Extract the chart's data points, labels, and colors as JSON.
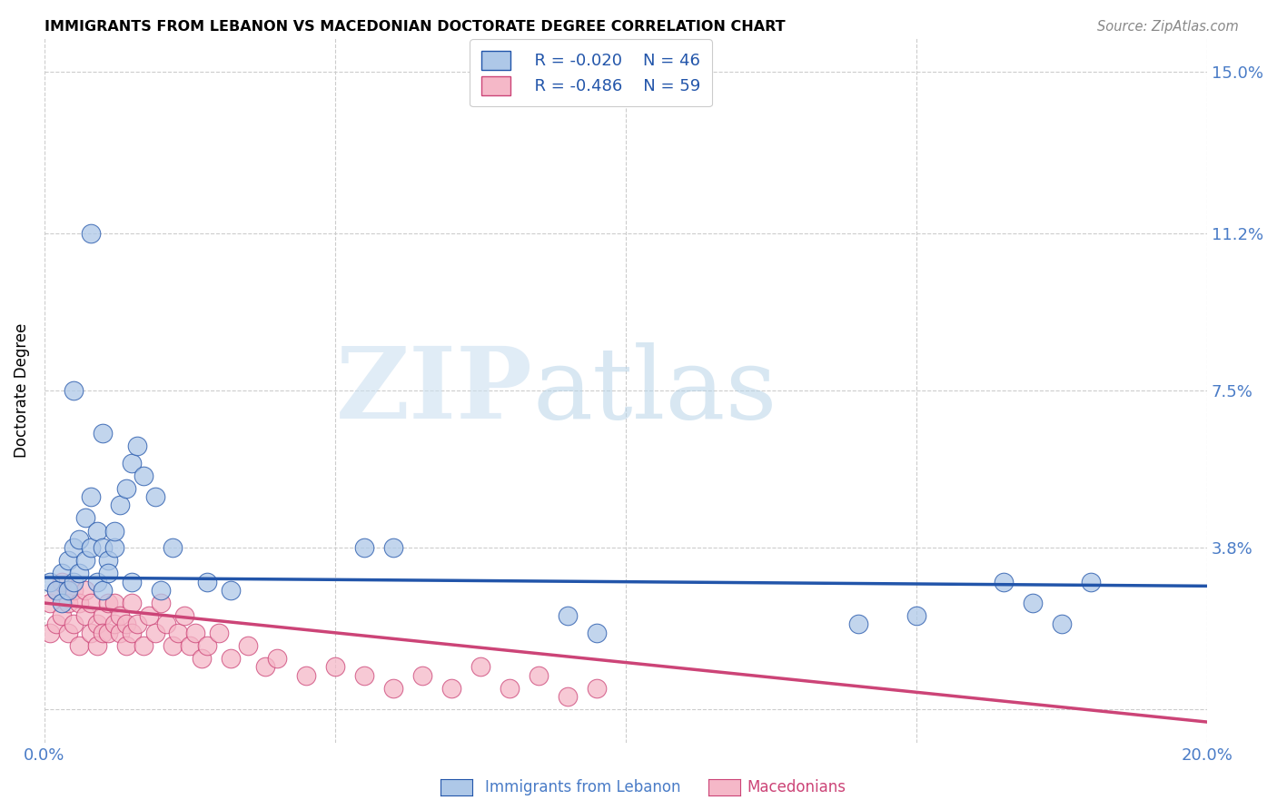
{
  "title": "IMMIGRANTS FROM LEBANON VS MACEDONIAN DOCTORATE DEGREE CORRELATION CHART",
  "source": "Source: ZipAtlas.com",
  "ylabel": "Doctorate Degree",
  "xlim": [
    0.0,
    0.2
  ],
  "ylim": [
    -0.008,
    0.158
  ],
  "yticks": [
    0.0,
    0.038,
    0.075,
    0.112,
    0.15
  ],
  "ytick_labels": [
    "",
    "3.8%",
    "7.5%",
    "11.2%",
    "15.0%"
  ],
  "xticks": [
    0.0,
    0.05,
    0.1,
    0.15,
    0.2
  ],
  "xtick_labels": [
    "0.0%",
    "",
    "",
    "",
    "20.0%"
  ],
  "legend_r1": "R = -0.020",
  "legend_n1": "N = 46",
  "legend_r2": "R = -0.486",
  "legend_n2": "N = 59",
  "blue_color": "#aec8e8",
  "pink_color": "#f5b8c8",
  "line_blue": "#2255aa",
  "line_pink": "#cc4477",
  "blue_line_start_y": 0.031,
  "blue_line_end_y": 0.029,
  "pink_line_start_y": 0.025,
  "pink_line_end_y": -0.003,
  "blue_points_x": [
    0.001,
    0.002,
    0.003,
    0.003,
    0.004,
    0.004,
    0.005,
    0.005,
    0.006,
    0.006,
    0.007,
    0.007,
    0.008,
    0.008,
    0.009,
    0.009,
    0.01,
    0.01,
    0.011,
    0.011,
    0.012,
    0.012,
    0.013,
    0.014,
    0.015,
    0.016,
    0.017,
    0.019,
    0.022,
    0.028,
    0.055,
    0.06,
    0.09,
    0.095,
    0.14,
    0.15,
    0.165,
    0.17,
    0.175,
    0.18,
    0.032,
    0.005,
    0.008,
    0.01,
    0.015,
    0.02
  ],
  "blue_points_y": [
    0.03,
    0.028,
    0.032,
    0.025,
    0.035,
    0.028,
    0.038,
    0.03,
    0.04,
    0.032,
    0.045,
    0.035,
    0.05,
    0.038,
    0.042,
    0.03,
    0.038,
    0.028,
    0.035,
    0.032,
    0.038,
    0.042,
    0.048,
    0.052,
    0.058,
    0.062,
    0.055,
    0.05,
    0.038,
    0.03,
    0.038,
    0.038,
    0.022,
    0.018,
    0.02,
    0.022,
    0.03,
    0.025,
    0.02,
    0.03,
    0.028,
    0.075,
    0.112,
    0.065,
    0.03,
    0.028
  ],
  "pink_points_x": [
    0.001,
    0.001,
    0.002,
    0.002,
    0.003,
    0.003,
    0.004,
    0.004,
    0.005,
    0.005,
    0.006,
    0.006,
    0.007,
    0.007,
    0.008,
    0.008,
    0.009,
    0.009,
    0.01,
    0.01,
    0.011,
    0.011,
    0.012,
    0.012,
    0.013,
    0.013,
    0.014,
    0.014,
    0.015,
    0.015,
    0.016,
    0.017,
    0.018,
    0.019,
    0.02,
    0.021,
    0.022,
    0.023,
    0.024,
    0.025,
    0.026,
    0.027,
    0.028,
    0.03,
    0.032,
    0.035,
    0.038,
    0.04,
    0.045,
    0.05,
    0.055,
    0.06,
    0.065,
    0.07,
    0.075,
    0.08,
    0.085,
    0.09,
    0.095
  ],
  "pink_points_y": [
    0.025,
    0.018,
    0.028,
    0.02,
    0.03,
    0.022,
    0.025,
    0.018,
    0.028,
    0.02,
    0.025,
    0.015,
    0.022,
    0.028,
    0.018,
    0.025,
    0.02,
    0.015,
    0.022,
    0.018,
    0.025,
    0.018,
    0.02,
    0.025,
    0.018,
    0.022,
    0.015,
    0.02,
    0.025,
    0.018,
    0.02,
    0.015,
    0.022,
    0.018,
    0.025,
    0.02,
    0.015,
    0.018,
    0.022,
    0.015,
    0.018,
    0.012,
    0.015,
    0.018,
    0.012,
    0.015,
    0.01,
    0.012,
    0.008,
    0.01,
    0.008,
    0.005,
    0.008,
    0.005,
    0.01,
    0.005,
    0.008,
    0.003,
    0.005
  ]
}
